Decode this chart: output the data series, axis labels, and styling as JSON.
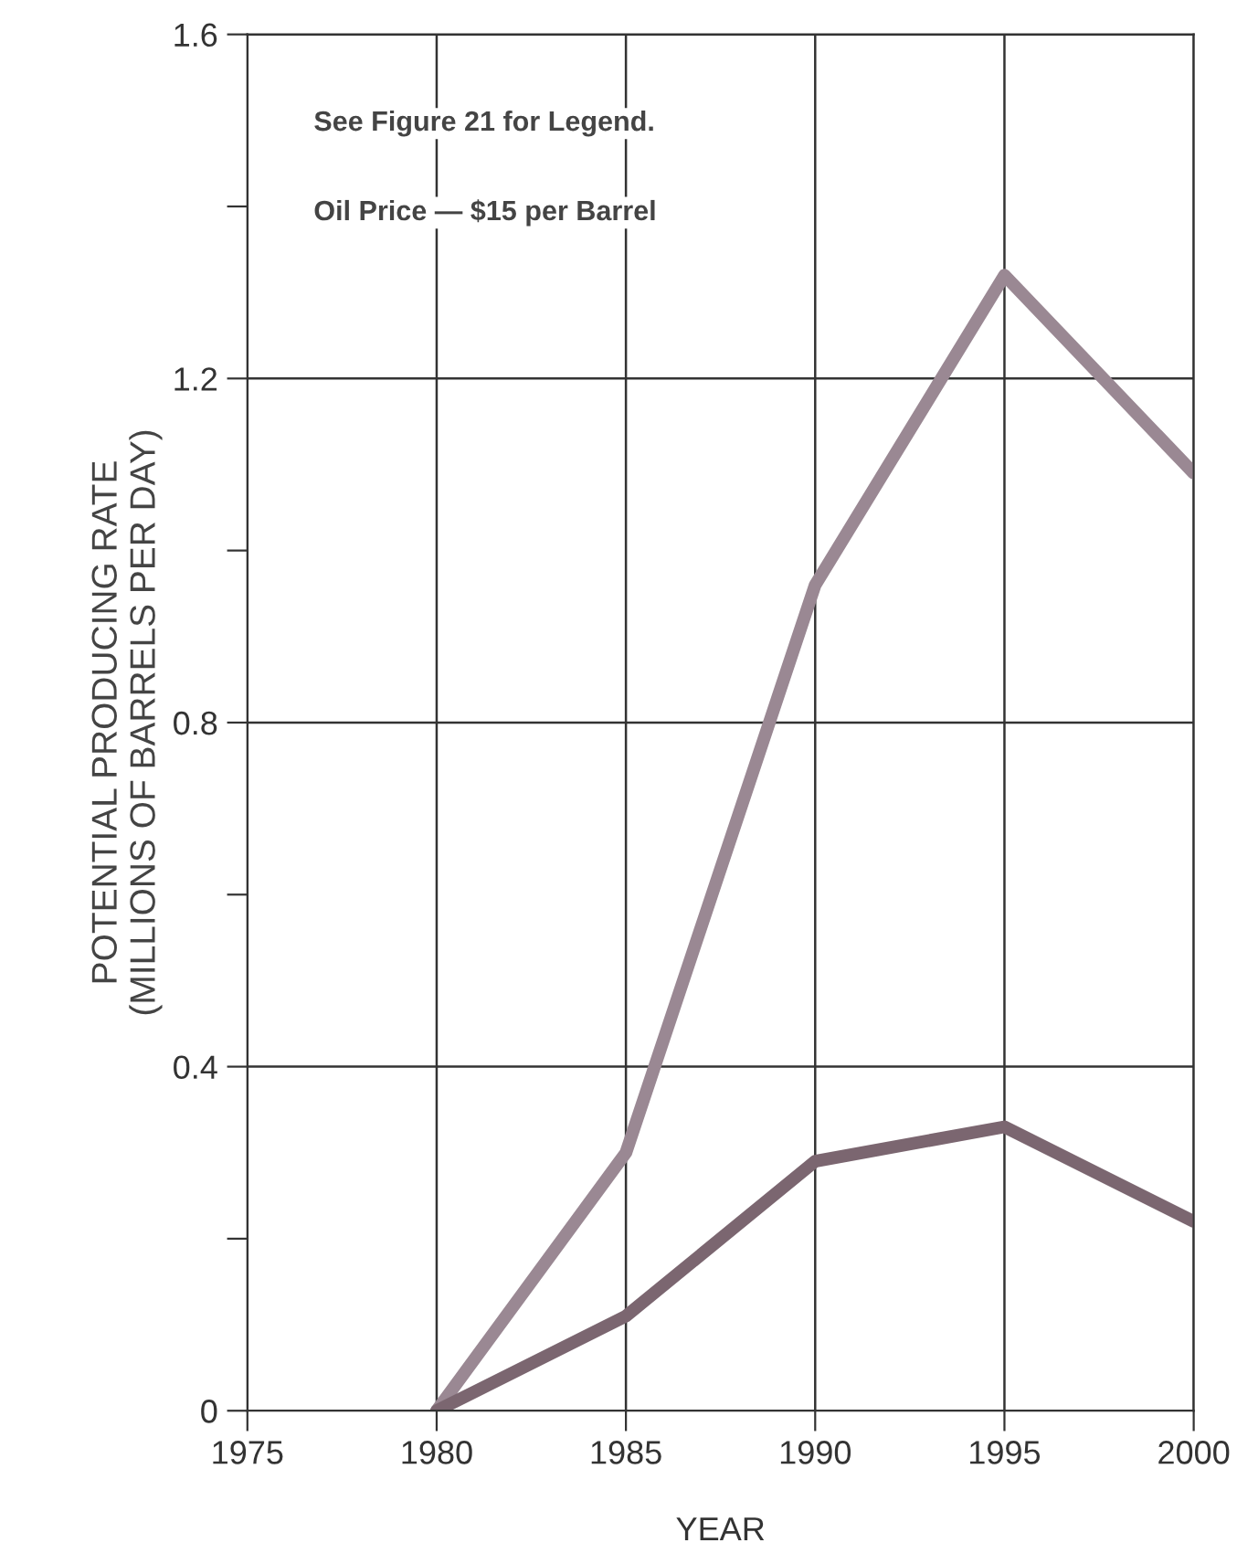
{
  "chart_data": {
    "type": "line",
    "xlabel": "YEAR",
    "ylabel": "POTENTIAL PRODUCING RATE\n(MILLIONS OF BARRELS PER DAY)",
    "annotations": [
      "See Figure 21 for Legend.",
      "Oil Price — $15 per Barrel"
    ],
    "x": [
      1980,
      1985,
      1990,
      1995,
      2000
    ],
    "series": [
      {
        "color": "#9a8893",
        "values": [
          0,
          0.3,
          0.96,
          1.32,
          1.09
        ]
      },
      {
        "color": "#7b6670",
        "values": [
          0,
          0.11,
          0.29,
          0.33,
          0.22
        ]
      }
    ],
    "xlim": [
      1975,
      2000
    ],
    "xticks": [
      1975,
      1980,
      1985,
      1990,
      1995,
      2000
    ],
    "ylim": [
      0,
      1.6
    ],
    "yticks": [
      0,
      {
        "value": 0.2,
        "label": null
      },
      0.4,
      {
        "value": 0.6,
        "label": null
      },
      0.8,
      {
        "value": 1.0,
        "label": null
      },
      1.2,
      {
        "value": 1.4,
        "label": null
      },
      1.6
    ],
    "grid": true,
    "line_style": "solid",
    "marker": "none"
  }
}
